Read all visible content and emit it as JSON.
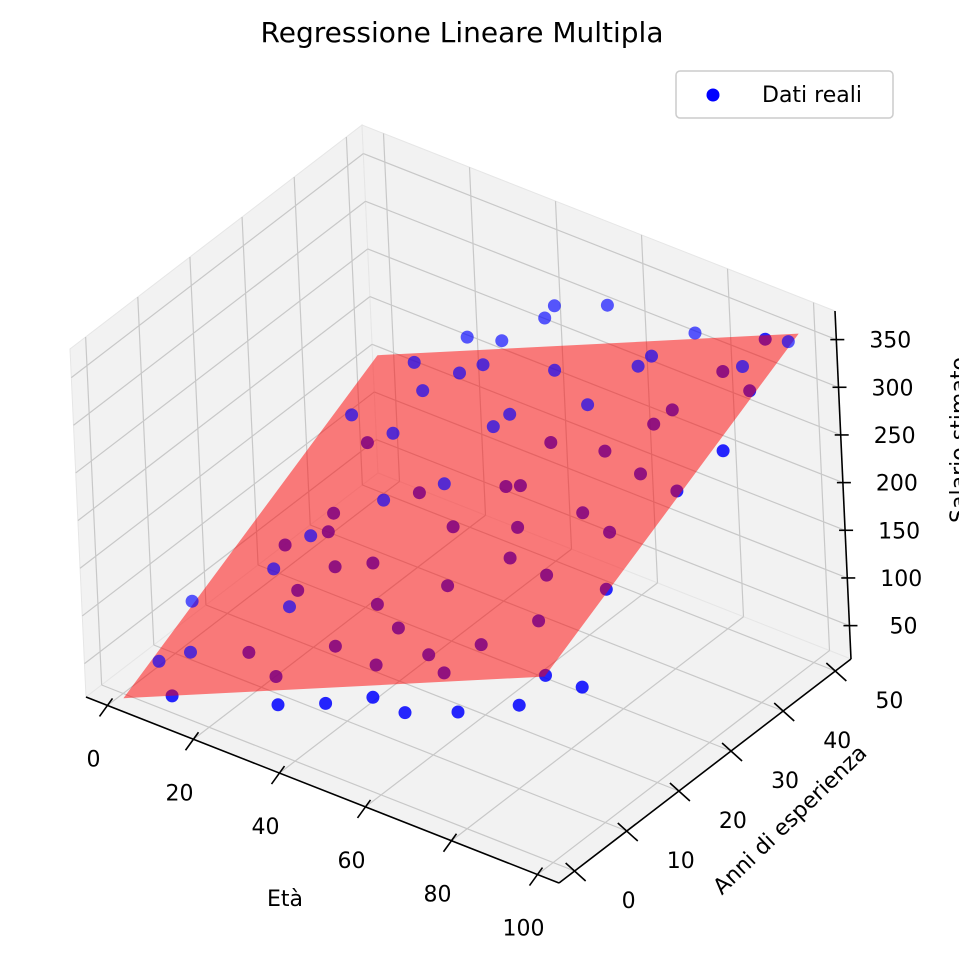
{
  "chart_data": {
    "type": "scatter3d",
    "title": "Regressione Lineare Multipla",
    "xlabel": "Età",
    "ylabel": "Anni di esperienza",
    "zlabel": "Salario stimato",
    "xlim": [
      -5,
      105
    ],
    "ylim": [
      -3,
      53
    ],
    "zlim": [
      15,
      380
    ],
    "xticks": [
      0,
      20,
      40,
      60,
      80,
      100
    ],
    "yticks": [
      0,
      10,
      20,
      30,
      40,
      50
    ],
    "zticks": [
      50,
      100,
      150,
      200,
      250,
      300,
      350
    ],
    "legend": {
      "label": "Dati reali",
      "position": "top-right"
    },
    "colors": {
      "points": "#0000ff",
      "plane": "#ff0000",
      "pane": "#f2f2f2",
      "grid": "#c8c8c8"
    },
    "plane": {
      "x_range": [
        0,
        100
      ],
      "y_range": [
        0,
        50
      ],
      "intercept": 10,
      "coef_x": 2.0,
      "coef_y": 3.0
    },
    "points": [
      [
        2,
        12,
        65
      ],
      [
        5,
        3,
        45
      ],
      [
        8,
        25,
        80
      ],
      [
        10,
        5,
        55
      ],
      [
        6,
        40,
        150
      ],
      [
        12,
        30,
        80
      ],
      [
        14,
        18,
        95
      ],
      [
        9,
        2,
        20
      ],
      [
        18,
        22,
        120
      ],
      [
        20,
        8,
        60
      ],
      [
        15,
        45,
        200
      ],
      [
        22,
        35,
        180
      ],
      [
        25,
        12,
        100
      ],
      [
        28,
        28,
        150
      ],
      [
        30,
        5,
        65
      ],
      [
        24,
        48,
        230
      ],
      [
        32,
        40,
        240
      ],
      [
        35,
        20,
        130
      ],
      [
        38,
        10,
        90
      ],
      [
        36,
        45,
        260
      ],
      [
        40,
        30,
        180
      ],
      [
        42,
        15,
        120
      ],
      [
        45,
        48,
        300
      ],
      [
        48,
        25,
        170
      ],
      [
        50,
        8,
        100
      ],
      [
        46,
        38,
        230
      ],
      [
        52,
        42,
        270
      ],
      [
        55,
        18,
        150
      ],
      [
        58,
        30,
        210
      ],
      [
        60,
        10,
        120
      ],
      [
        55,
        50,
        310
      ],
      [
        62,
        40,
        260
      ],
      [
        65,
        22,
        180
      ],
      [
        68,
        45,
        290
      ],
      [
        70,
        12,
        140
      ],
      [
        72,
        35,
        250
      ],
      [
        75,
        28,
        220
      ],
      [
        78,
        48,
        330
      ],
      [
        80,
        15,
        170
      ],
      [
        82,
        40,
        290
      ],
      [
        85,
        25,
        230
      ],
      [
        88,
        45,
        320
      ],
      [
        90,
        20,
        200
      ],
      [
        92,
        50,
        340
      ],
      [
        95,
        30,
        270
      ],
      [
        98,
        42,
        330
      ],
      [
        100,
        35,
        300
      ],
      [
        96,
        10,
        150
      ],
      [
        86,
        6,
        130
      ],
      [
        74,
        4,
        110
      ],
      [
        64,
        2,
        100
      ],
      [
        54,
        4,
        90
      ],
      [
        44,
        3,
        70
      ],
      [
        34,
        2,
        55
      ],
      [
        26,
        20,
        110
      ],
      [
        16,
        28,
        115
      ],
      [
        30,
        46,
        220
      ],
      [
        40,
        50,
        270
      ],
      [
        48,
        14,
        110
      ],
      [
        58,
        36,
        230
      ],
      [
        66,
        8,
        120
      ],
      [
        76,
        20,
        190
      ],
      [
        84,
        32,
        260
      ],
      [
        94,
        44,
        340
      ],
      [
        100,
        48,
        360
      ],
      [
        62,
        26,
        190
      ],
      [
        52,
        32,
        190
      ],
      [
        42,
        38,
        210
      ],
      [
        34,
        30,
        160
      ],
      [
        22,
        16,
        95
      ],
      [
        12,
        38,
        140
      ],
      [
        70,
        46,
        300
      ],
      [
        80,
        38,
        280
      ],
      [
        90,
        8,
        160
      ],
      [
        18,
        44,
        180
      ]
    ]
  }
}
